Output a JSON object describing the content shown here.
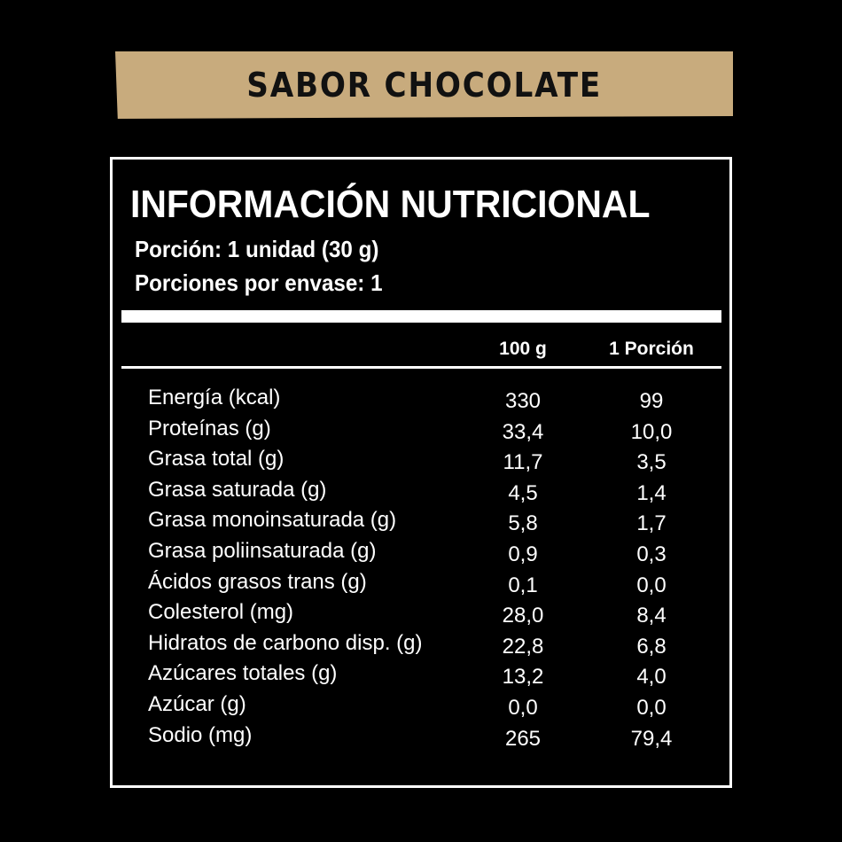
{
  "banner": {
    "label": "SABOR CHOCOLATE",
    "color": "#c8ab7d"
  },
  "label": {
    "title": "INFORMACIÓN NUTRICIONAL",
    "serving": "Porción: 1 unidad (30 g)",
    "servings_per_container": "Porciones por envase: 1",
    "columns": [
      "100 g",
      "1 Porción"
    ],
    "rows": [
      {
        "name": "Energía (kcal)",
        "per100": "330",
        "perServing": "99"
      },
      {
        "name": "Proteínas (g)",
        "per100": "33,4",
        "perServing": "10,0"
      },
      {
        "name": "Grasa total (g)",
        "per100": "11,7",
        "perServing": "3,5"
      },
      {
        "name": "Grasa saturada (g)",
        "per100": "4,5",
        "perServing": "1,4"
      },
      {
        "name": "Grasa monoinsaturada (g)",
        "per100": "5,8",
        "perServing": "1,7"
      },
      {
        "name": "Grasa poliinsaturada (g)",
        "per100": "0,9",
        "perServing": "0,3"
      },
      {
        "name": "Ácidos grasos trans (g)",
        "per100": "0,1",
        "perServing": "0,0"
      },
      {
        "name": "Colesterol (mg)",
        "per100": "28,0",
        "perServing": "8,4"
      },
      {
        "name": "Hidratos de carbono disp. (g)",
        "per100": "22,8",
        "perServing": "6,8"
      },
      {
        "name": "Azúcares totales (g)",
        "per100": "13,2",
        "perServing": "4,0"
      },
      {
        "name": "Azúcar (g)",
        "per100": "0,0",
        "perServing": "0,0"
      },
      {
        "name": "Sodio (mg)",
        "per100": "265",
        "perServing": "79,4"
      }
    ]
  }
}
